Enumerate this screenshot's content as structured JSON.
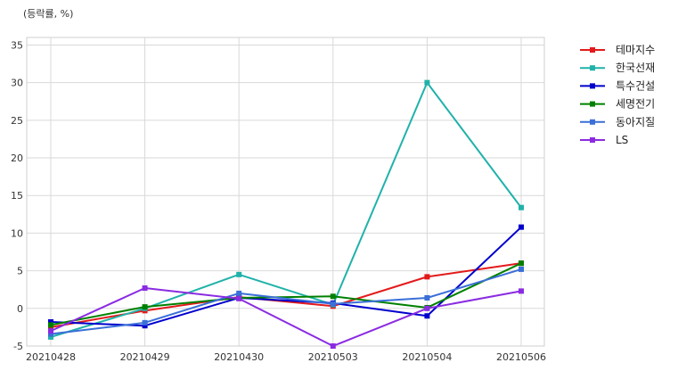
{
  "chart_data": {
    "type": "line",
    "unit_label": "(등락률, %)",
    "categories": [
      "20210428",
      "20210429",
      "20210430",
      "20210503",
      "20210504",
      "20210506"
    ],
    "ylim": [
      -5,
      36
    ],
    "yticks": [
      -5,
      0,
      5,
      10,
      15,
      20,
      25,
      30,
      35
    ],
    "grid": true,
    "legend_position": "right",
    "series": [
      {
        "name": "테마지수",
        "color": "#e31a1c",
        "values": [
          -2.5,
          -0.3,
          1.5,
          0.3,
          4.2,
          6.0
        ]
      },
      {
        "name": "한국선재",
        "color": "#20b2aa",
        "values": [
          -3.8,
          0.0,
          4.5,
          0.5,
          30.0,
          13.4
        ]
      },
      {
        "name": "특수건설",
        "color": "#0000cd",
        "values": [
          -1.8,
          -2.3,
          1.4,
          0.7,
          -1.0,
          10.8
        ]
      },
      {
        "name": "세명전기",
        "color": "#008000",
        "values": [
          -2.2,
          0.2,
          1.4,
          1.6,
          0.1,
          6.0
        ]
      },
      {
        "name": "동아지질",
        "color": "#3a6fd8",
        "values": [
          -3.4,
          -1.9,
          2.0,
          0.6,
          1.4,
          5.2
        ]
      },
      {
        "name": "LS",
        "color": "#8a2be2",
        "values": [
          -3.0,
          2.7,
          1.3,
          -5.0,
          0.0,
          2.3
        ]
      }
    ]
  }
}
